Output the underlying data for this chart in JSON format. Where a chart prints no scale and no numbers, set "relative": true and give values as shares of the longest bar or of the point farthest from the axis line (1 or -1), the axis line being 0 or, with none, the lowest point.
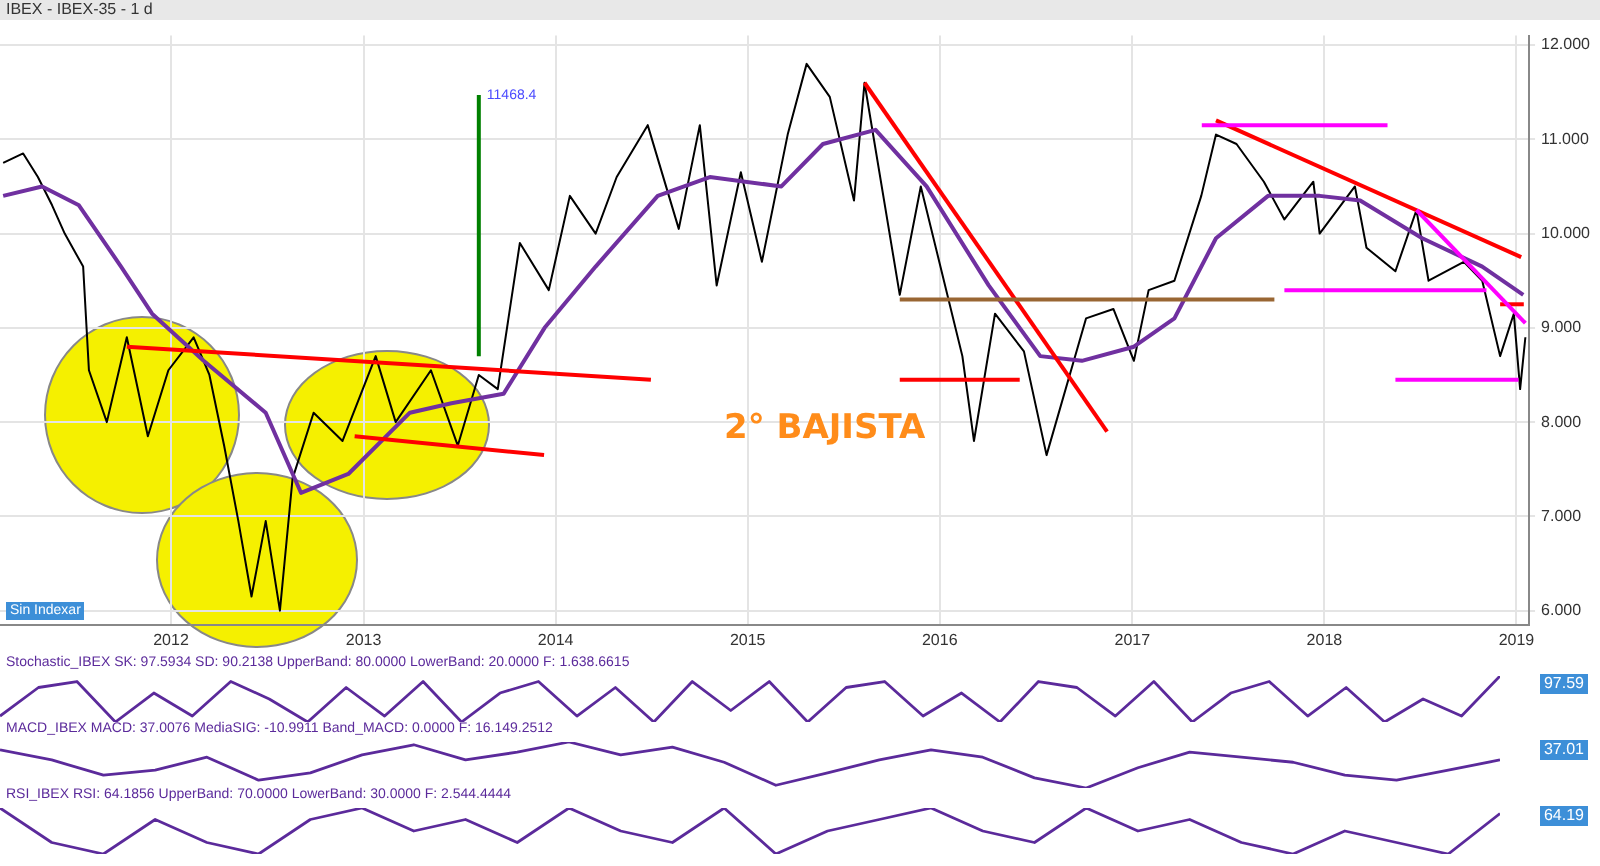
{
  "chart_data": [
    {
      "type": "line",
      "title": "IBEX - IBEX-35 - 1 d",
      "xlim": [
        "2011-02-10",
        "2019-01-25"
      ],
      "ylim": [
        5.85,
        12.1
      ],
      "xticks": [
        {
          "value": "2012-01-01",
          "label": "2012"
        },
        {
          "value": "2013-01-01",
          "label": "2013"
        },
        {
          "value": "2014-01-01",
          "label": "2014"
        },
        {
          "value": "2015-01-01",
          "label": "2015"
        },
        {
          "value": "2016-01-01",
          "label": "2016"
        },
        {
          "value": "2017-01-01",
          "label": "2017"
        },
        {
          "value": "2018-01-01",
          "label": "2018"
        },
        {
          "value": "2019-01-01",
          "label": "2019"
        }
      ],
      "yticks": [
        {
          "value": 6,
          "label": "6.000"
        },
        {
          "value": 7,
          "label": "7.000"
        },
        {
          "value": 8,
          "label": "8.000"
        },
        {
          "value": 9,
          "label": "9.000"
        },
        {
          "value": 10,
          "label": "10.000"
        },
        {
          "value": 11,
          "label": "11.000"
        },
        {
          "value": 12,
          "label": "12.000"
        }
      ],
      "grid": true,
      "legend": false,
      "marker": "none",
      "series": [
        {
          "color": "#000000",
          "x": [
            "2011-02-16",
            "2011-03-26",
            "2011-04-23",
            "2011-05-20",
            "2011-06-13",
            "2011-07-18",
            "2011-07-29",
            "2011-09-01",
            "2011-10-09",
            "2011-11-18",
            "2011-12-27",
            "2012-02-13",
            "2012-03-14",
            "2012-04-11",
            "2012-05-08",
            "2012-06-02",
            "2012-06-29",
            "2012-07-26",
            "2012-08-19",
            "2012-09-28",
            "2012-11-22",
            "2013-01-24",
            "2013-03-03",
            "2013-05-09",
            "2013-06-29",
            "2013-08-08",
            "2013-09-13",
            "2013-10-25",
            "2013-12-19",
            "2014-01-28",
            "2014-03-18",
            "2014-04-27",
            "2014-06-25",
            "2014-08-23",
            "2014-10-02",
            "2014-11-03",
            "2014-12-19",
            "2015-01-28",
            "2015-03-18",
            "2015-04-23",
            "2015-06-06",
            "2015-07-22",
            "2015-08-11",
            "2015-10-17",
            "2015-11-26",
            "2016-02-13",
            "2016-03-06",
            "2016-04-15",
            "2016-06-09",
            "2016-07-22",
            "2016-10-05",
            "2016-11-26",
            "2017-01-04",
            "2017-02-01",
            "2017-03-22",
            "2017-05-12",
            "2017-06-09",
            "2017-07-18",
            "2017-09-08",
            "2017-10-17",
            "2017-12-11",
            "2017-12-23",
            "2018-02-28",
            "2018-03-22",
            "2018-05-16",
            "2018-06-25",
            "2018-07-18",
            "2018-09-23",
            "2018-10-28",
            "2018-12-01",
            "2018-12-27",
            "2019-01-08",
            "2019-01-18"
          ],
          "values": [
            10.75,
            10.85,
            10.6,
            10.3,
            10.0,
            9.65,
            8.55,
            8.0,
            8.9,
            7.85,
            8.55,
            8.9,
            8.5,
            7.75,
            6.95,
            6.15,
            6.95,
            6.0,
            7.4,
            8.1,
            7.8,
            8.7,
            8.0,
            8.55,
            7.75,
            8.5,
            8.35,
            9.9,
            9.4,
            10.4,
            10.0,
            10.6,
            11.15,
            10.05,
            11.15,
            9.45,
            10.65,
            9.7,
            11.05,
            11.8,
            11.45,
            10.35,
            11.6,
            9.35,
            10.5,
            8.7,
            7.8,
            9.15,
            8.75,
            7.65,
            9.1,
            9.2,
            8.65,
            9.4,
            9.5,
            10.4,
            11.05,
            10.95,
            10.55,
            10.15,
            10.55,
            10.0,
            10.5,
            9.85,
            9.6,
            10.25,
            9.5,
            9.7,
            9.5,
            8.7,
            9.15,
            8.35,
            8.9
          ]
        },
        {
          "color": "#7030a0",
          "x": [
            "2011-02-16",
            "2011-05-01",
            "2011-07-10",
            "2011-09-28",
            "2011-11-26",
            "2012-03-03",
            "2012-06-29",
            "2012-09-04",
            "2012-12-03",
            "2013-03-30",
            "2013-06-17",
            "2013-09-24",
            "2013-12-11",
            "2014-03-18",
            "2014-07-14",
            "2014-10-21",
            "2015-03-06",
            "2015-05-24",
            "2015-09-01",
            "2015-12-07",
            "2016-04-03",
            "2016-07-10",
            "2016-09-27",
            "2017-01-04",
            "2017-03-22",
            "2017-06-09",
            "2017-09-16",
            "2017-12-23",
            "2018-03-10",
            "2018-07-06",
            "2018-10-28",
            "2019-01-14"
          ],
          "values": [
            10.4,
            10.5,
            10.3,
            9.65,
            9.15,
            8.65,
            8.1,
            7.25,
            7.45,
            8.1,
            8.2,
            8.3,
            9.0,
            9.65,
            10.4,
            10.6,
            10.5,
            10.95,
            11.1,
            10.5,
            9.45,
            8.7,
            8.65,
            8.8,
            9.1,
            9.95,
            10.4,
            10.4,
            10.35,
            9.95,
            9.65,
            9.35
          ]
        },
        {
          "color": "#ff0000",
          "x": [
            "2011-10-09",
            "2014-07-01"
          ],
          "values": [
            8.8,
            8.45
          ]
        },
        {
          "color": "#ff0000",
          "x": [
            "2012-12-15",
            "2013-12-10"
          ],
          "values": [
            7.85,
            7.65
          ]
        },
        {
          "color": "#ff0000",
          "x": [
            "2015-08-11",
            "2016-11-14"
          ],
          "values": [
            11.6,
            7.9
          ]
        },
        {
          "color": "#ff0000",
          "x": [
            "2017-06-09",
            "2019-01-10"
          ],
          "values": [
            11.2,
            9.75
          ]
        },
        {
          "color": "#ff0000",
          "x": [
            "2018-12-01",
            "2019-01-15"
          ],
          "values": [
            9.25,
            9.25
          ]
        },
        {
          "color": "#ff00ff",
          "x": [
            "2018-06-25",
            "2019-01-18"
          ],
          "values": [
            10.25,
            9.05
          ]
        },
        {
          "color": "#996633",
          "x": [
            "2015-10-17",
            "2017-09-28"
          ],
          "values": [
            9.3,
            9.3
          ]
        },
        {
          "color": "#ff00ff",
          "x": [
            "2017-05-13",
            "2018-05-01"
          ],
          "values": [
            11.15,
            11.15
          ]
        },
        {
          "color": "#ff00ff",
          "x": [
            "2017-10-17",
            "2018-11-05"
          ],
          "values": [
            9.4,
            9.4
          ]
        },
        {
          "color": "#ff00ff",
          "x": [
            "2018-05-16",
            "2019-01-05"
          ],
          "values": [
            8.45,
            8.45
          ]
        },
        {
          "color": "#ff0000",
          "x": [
            "2015-10-17",
            "2016-06-01"
          ],
          "values": [
            8.45,
            8.45
          ]
        },
        {
          "color": "#008000",
          "x": [
            "2013-08-08",
            "2013-08-08"
          ],
          "values": [
            8.7,
            11.47
          ]
        }
      ],
      "annotations": [
        {
          "text": "11468.4",
          "x": "2013-08-08",
          "y": 11.47
        },
        "2° BAJISTA",
        "Sin Indexar"
      ]
    },
    {
      "type": "line",
      "title": "Stochastic_IBEX SK: 97.5934 SD: 90.2138 UpperBand: 80.0000 LowerBand: 20.0000 F: 1.638.6615",
      "relative": true,
      "legend": false,
      "marker": "none",
      "categories": [
        null,
        null,
        null,
        null,
        null,
        null,
        null,
        null,
        null,
        null,
        null,
        null,
        null,
        null,
        null,
        null,
        null,
        null,
        null,
        null,
        null,
        null,
        null,
        null,
        null,
        null,
        null,
        null,
        null,
        null,
        null,
        null,
        null,
        null,
        null,
        null,
        null,
        null,
        null,
        null
      ],
      "series": [
        {
          "color": "#5b2a9b",
          "values": [
            0.13,
            0.75,
            0.88,
            0,
            0.63,
            0.13,
            0.88,
            0.5,
            0,
            0.75,
            0.13,
            0.88,
            0,
            0.63,
            0.88,
            0.13,
            0.75,
            0,
            0.88,
            0.25,
            0.88,
            0,
            0.75,
            0.88,
            0.13,
            0.63,
            0,
            0.88,
            0.75,
            0.13,
            0.88,
            0,
            0.63,
            0.88,
            0.13,
            0.75,
            0,
            0.5,
            0.13,
            1
          ]
        }
      ],
      "annotations": [
        "97.59"
      ]
    },
    {
      "type": "line",
      "title": "MACD_IBEX MACD: 37.0076 MediaSIG: -10.9911 Band_MACD: 0.0000 F: 16.149.2512",
      "relative": true,
      "legend": false,
      "marker": "none",
      "categories": [
        null,
        null,
        null,
        null,
        null,
        null,
        null,
        null,
        null,
        null,
        null,
        null,
        null,
        null,
        null,
        null,
        null,
        null,
        null,
        null,
        null,
        null,
        null,
        null,
        null,
        null,
        null,
        null,
        null,
        null
      ],
      "series": [
        {
          "color": "#5b2a9b",
          "values": [
            0.83,
            0.61,
            0.28,
            0.39,
            0.67,
            0.17,
            0.33,
            0.72,
            0.94,
            0.61,
            0.78,
            1,
            0.72,
            0.89,
            0.56,
            0.06,
            0.33,
            0.61,
            0.83,
            0.67,
            0.22,
            0,
            0.44,
            0.78,
            0.67,
            0.56,
            0.28,
            0.17,
            0.39,
            0.61
          ]
        }
      ],
      "annotations": [
        "37.01"
      ]
    },
    {
      "type": "line",
      "title": "RSI_IBEX RSI: 64.1856 UpperBand: 70.0000 LowerBand: 30.0000 F: 2.544.4444",
      "relative": true,
      "legend": false,
      "marker": "none",
      "categories": [
        null,
        null,
        null,
        null,
        null,
        null,
        null,
        null,
        null,
        null,
        null,
        null,
        null,
        null,
        null,
        null,
        null,
        null,
        null,
        null,
        null,
        null,
        null,
        null,
        null,
        null,
        null,
        null,
        null,
        null
      ],
      "series": [
        {
          "color": "#5b2a9b",
          "values": [
            1,
            0.25,
            0,
            0.75,
            0.25,
            0,
            0.75,
            1,
            0.5,
            0.75,
            0.25,
            1,
            0.5,
            0.25,
            1,
            0,
            0.5,
            0.75,
            1,
            0.5,
            0.25,
            1,
            0.5,
            0.75,
            0.25,
            0,
            0.5,
            0.25,
            0,
            0.88
          ]
        }
      ],
      "annotations": [
        "64.19"
      ]
    }
  ]
}
